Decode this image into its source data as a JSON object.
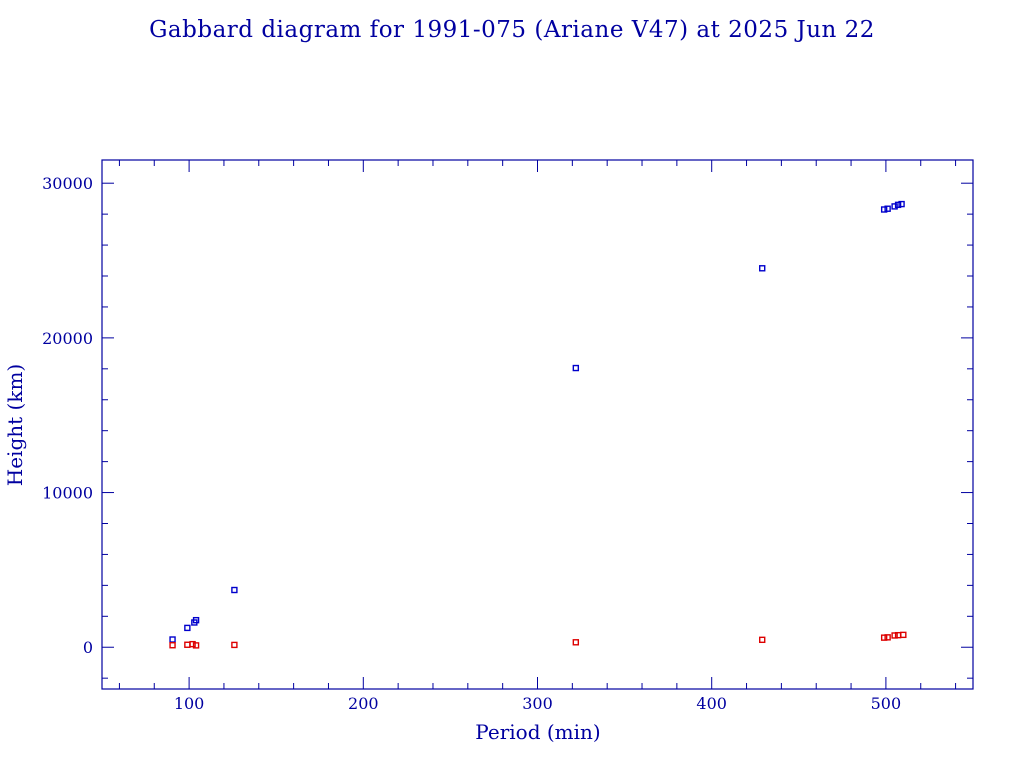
{
  "chart_data": {
    "type": "scatter",
    "title": "Gabbard diagram for 1991-075 (Ariane V47) at 2025 Jun 22",
    "xlabel": "Period (min)",
    "ylabel": "Height (km)",
    "xlim": [
      50,
      550
    ],
    "ylim": [
      -2700,
      31500
    ],
    "x_ticks": [
      100,
      200,
      300,
      400,
      500
    ],
    "x_tick_labels": [
      "100",
      "200",
      "300",
      "400",
      "500"
    ],
    "y_ticks": [
      0,
      10000,
      20000,
      30000
    ],
    "y_tick_labels": [
      "0",
      "10000",
      "20000",
      "30000"
    ],
    "grid": false,
    "series": [
      {
        "color": "#0000cc",
        "points": [
          [
            90.5,
            500
          ],
          [
            99,
            1250
          ],
          [
            103,
            1600
          ],
          [
            104,
            1750
          ],
          [
            126,
            3700
          ],
          [
            322,
            18050
          ],
          [
            429,
            24500
          ],
          [
            499,
            28300
          ],
          [
            501,
            28350
          ],
          [
            505,
            28500
          ],
          [
            507,
            28600
          ],
          [
            509,
            28650
          ]
        ]
      },
      {
        "color": "#dd0000",
        "points": [
          [
            90.5,
            130
          ],
          [
            99,
            160
          ],
          [
            102,
            200
          ],
          [
            104,
            120
          ],
          [
            126,
            150
          ],
          [
            322,
            320
          ],
          [
            429,
            480
          ],
          [
            499,
            620
          ],
          [
            501,
            640
          ],
          [
            505,
            760
          ],
          [
            507,
            780
          ],
          [
            510,
            800
          ]
        ]
      }
    ]
  }
}
